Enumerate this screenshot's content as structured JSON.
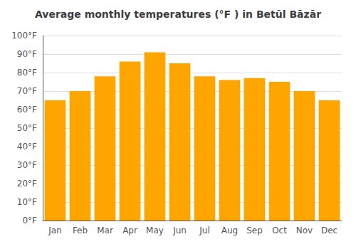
{
  "chart_data": {
    "type": "bar",
    "title": "Average monthly temperatures (°F ) in Betūl Bāzār",
    "categories": [
      "Jan",
      "Feb",
      "Mar",
      "Apr",
      "May",
      "Jun",
      "Jul",
      "Aug",
      "Sep",
      "Oct",
      "Nov",
      "Dec"
    ],
    "values": [
      65,
      70,
      78,
      86,
      91,
      85,
      78,
      76,
      77,
      75,
      70,
      65
    ],
    "color": "#FFA500",
    "ylim": [
      0,
      100
    ],
    "yticks": [
      {
        "value": 0,
        "label": "0°F"
      },
      {
        "value": 10,
        "label": "10°F"
      },
      {
        "value": 20,
        "label": "20°F"
      },
      {
        "value": 30,
        "label": "30°F"
      },
      {
        "value": 40,
        "label": "40°F"
      },
      {
        "value": 50,
        "label": "50°F"
      },
      {
        "value": 60,
        "label": "60°F"
      },
      {
        "value": 70,
        "label": "70°F"
      },
      {
        "value": 80,
        "label": "80°F"
      },
      {
        "value": 90,
        "label": "90°F"
      },
      {
        "value": 100,
        "label": "100°F"
      }
    ],
    "grid": true
  }
}
